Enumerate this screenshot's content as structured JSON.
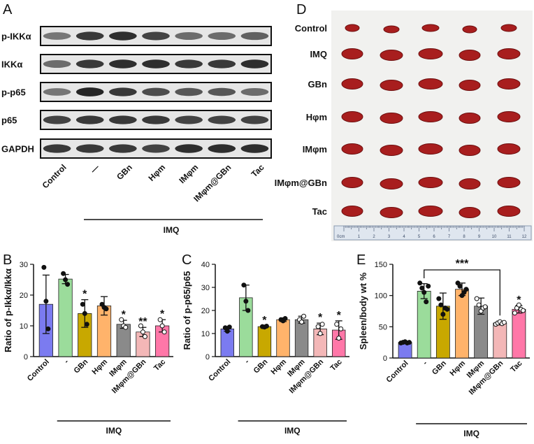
{
  "panels": {
    "A": "A",
    "B": "B",
    "C": "C",
    "D": "D",
    "E": "E"
  },
  "blot": {
    "rows": [
      "p-IKKα",
      "IKKα",
      "p-p65",
      "p65",
      "GAPDH"
    ],
    "lanes": [
      "Control",
      "—",
      "GBn",
      "Hφm",
      "IMφm",
      "IMφm@GBn",
      "Tac"
    ],
    "group_label": "IMQ"
  },
  "spleen": {
    "rows": [
      "Control",
      "IMQ",
      "GBn",
      "Hφm",
      "IMφm",
      "IMφm@GBn",
      "Tac"
    ],
    "ruler_label": "0cm",
    "ruler_numbers": [
      "1",
      "2",
      "3",
      "4",
      "5",
      "6",
      "7",
      "8",
      "9",
      "10",
      "11",
      "12"
    ]
  },
  "colors": [
    "#7b7bf0",
    "#9bdc9b",
    "#c8a800",
    "#ffb36b",
    "#8a8a8a",
    "#f3b7b7",
    "#ff77a8"
  ],
  "chart_data": [
    {
      "type": "bar",
      "panel": "B",
      "categories": [
        "Control",
        "-",
        "GBn",
        "Hφm",
        "IMφm",
        "IMφm@GBn",
        "Tac"
      ],
      "values": [
        17,
        25.2,
        14,
        16.5,
        10.5,
        8,
        10
      ],
      "errors": [
        9.5,
        1.5,
        4.5,
        3,
        1.3,
        1.5,
        2
      ],
      "points": [
        [
          29,
          18,
          9
        ],
        [
          27,
          25,
          23.5
        ],
        [
          17,
          14,
          10.5
        ],
        [
          17,
          16,
          15.5
        ],
        [
          12,
          10,
          9.5
        ],
        [
          10,
          8,
          6.5
        ],
        [
          12,
          10,
          8
        ]
      ],
      "significance": [
        "",
        "",
        "*",
        "",
        "*",
        "**",
        "*"
      ],
      "ylabel": "Ratio of p-Ikkα/Ikkα",
      "ylim": [
        0,
        30
      ],
      "yticks": [
        "0",
        "10",
        "20",
        "30"
      ],
      "group_label": "IMQ"
    },
    {
      "type": "bar",
      "panel": "C",
      "categories": [
        "Control",
        "-",
        "GBn",
        "Hφm",
        "IMφm",
        "IMφm@GBn",
        "Tac"
      ],
      "values": [
        12,
        25.5,
        13,
        16,
        16,
        12,
        11.5
      ],
      "errors": [
        1,
        5.5,
        0.4,
        0.8,
        1.5,
        2.5,
        4
      ],
      "points": [
        [
          12.5,
          11,
          12.8
        ],
        [
          31,
          24,
          20
        ],
        [
          13,
          12.8,
          13.2
        ],
        [
          16,
          15.5,
          16.5
        ],
        [
          16,
          15,
          17.5
        ],
        [
          13,
          10,
          14
        ],
        [
          14,
          8,
          12
        ]
      ],
      "significance": [
        "",
        "",
        "*",
        "",
        "",
        "*",
        "*"
      ],
      "ylabel": "Ratio of p-p65/p65",
      "ylim": [
        0,
        40
      ],
      "yticks": [
        "0",
        "10",
        "20",
        "30",
        "40"
      ],
      "group_label": "IMQ"
    },
    {
      "type": "bar",
      "panel": "E",
      "categories": [
        "Control",
        "-",
        "GBn",
        "Hφm",
        "IMφm",
        "IMφm@GBn",
        "Tac"
      ],
      "values": [
        25,
        107,
        83,
        110,
        83,
        56,
        78
      ],
      "errors": [
        2,
        12,
        21,
        10,
        13,
        3,
        6
      ],
      "points": [
        [
          24,
          25,
          26,
          24,
          25
        ],
        [
          120,
          112,
          105,
          90,
          115
        ],
        [
          95,
          85,
          70,
          80,
          78
        ],
        [
          120,
          115,
          100,
          105,
          110
        ],
        [
          95,
          85,
          75,
          80,
          82
        ],
        [
          54,
          56,
          58,
          55,
          57
        ],
        [
          72,
          80,
          85,
          78,
          76
        ]
      ],
      "significance": [
        "",
        "",
        "",
        "",
        "",
        "",
        "*"
      ],
      "bracket": {
        "from": "-",
        "to": "IMφm@GBn",
        "label": "***"
      },
      "ylabel": "Spleen/body wt %",
      "ylim": [
        0,
        150
      ],
      "yticks": [
        "0",
        "50",
        "100",
        "150"
      ],
      "group_label": "IMQ"
    }
  ]
}
